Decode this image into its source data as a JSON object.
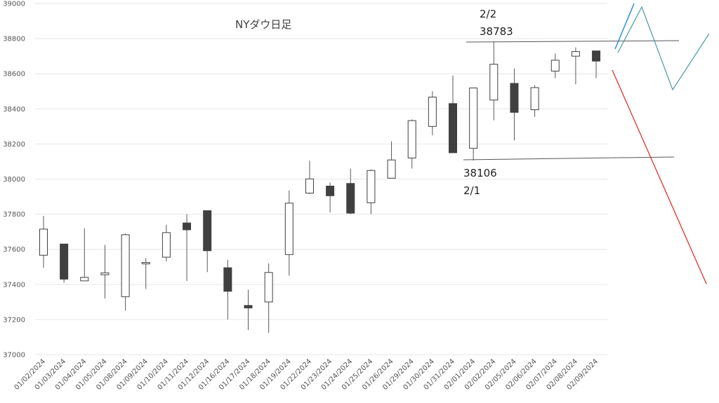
{
  "chart_data": {
    "type": "candlestick",
    "title": "NYダウ日足",
    "ylim": [
      37000,
      39000
    ],
    "y_ticks": [
      "37000",
      "37200",
      "37400",
      "37600",
      "37800",
      "38000",
      "38200",
      "38400",
      "38600",
      "38800",
      "39000"
    ],
    "grid": "horizontal",
    "colors": {
      "up_fill": "#ffffff",
      "down_fill": "#404040",
      "outline": "#404040",
      "wick": "#595959",
      "grid": "#e6e6e6",
      "lines_blue": "#2e8fd8",
      "lines_teal": "#4a9aa8",
      "line_red": "#e02020"
    },
    "candles": [
      {
        "date": "01/02/2024",
        "open": 37566,
        "high": 37790,
        "low": 37495,
        "close": 37715
      },
      {
        "date": "01/03/2024",
        "open": 37630,
        "high": 37630,
        "low": 37410,
        "close": 37430
      },
      {
        "date": "01/04/2024",
        "open": 37420,
        "high": 37720,
        "low": 37420,
        "close": 37440
      },
      {
        "date": "01/05/2024",
        "open": 37455,
        "high": 37625,
        "low": 37320,
        "close": 37466
      },
      {
        "date": "01/08/2024",
        "open": 37330,
        "high": 37690,
        "low": 37250,
        "close": 37683
      },
      {
        "date": "01/09/2024",
        "open": 37525,
        "high": 37550,
        "low": 37375,
        "close": 37525
      },
      {
        "date": "01/10/2024",
        "open": 37555,
        "high": 37740,
        "low": 37530,
        "close": 37695
      },
      {
        "date": "01/11/2024",
        "open": 37750,
        "high": 37800,
        "low": 37420,
        "close": 37711
      },
      {
        "date": "01/12/2024",
        "open": 37820,
        "high": 37820,
        "low": 37470,
        "close": 37592
      },
      {
        "date": "01/16/2024",
        "open": 37495,
        "high": 37540,
        "low": 37200,
        "close": 37361
      },
      {
        "date": "01/17/2024",
        "open": 37280,
        "high": 37370,
        "low": 37140,
        "close": 37266
      },
      {
        "date": "01/18/2024",
        "open": 37300,
        "high": 37520,
        "low": 37125,
        "close": 37468
      },
      {
        "date": "01/19/2024",
        "open": 37570,
        "high": 37935,
        "low": 37450,
        "close": 37863
      },
      {
        "date": "01/22/2024",
        "open": 37920,
        "high": 38105,
        "low": 37915,
        "close": 38001
      },
      {
        "date": "01/23/2024",
        "open": 37960,
        "high": 37980,
        "low": 37810,
        "close": 37905
      },
      {
        "date": "01/24/2024",
        "open": 37975,
        "high": 38060,
        "low": 37800,
        "close": 37806
      },
      {
        "date": "01/25/2024",
        "open": 37865,
        "high": 38055,
        "low": 37800,
        "close": 38049
      },
      {
        "date": "01/26/2024",
        "open": 38005,
        "high": 38215,
        "low": 38005,
        "close": 38109
      },
      {
        "date": "01/29/2024",
        "open": 38120,
        "high": 38340,
        "low": 38060,
        "close": 38333
      },
      {
        "date": "01/30/2024",
        "open": 38300,
        "high": 38500,
        "low": 38250,
        "close": 38467
      },
      {
        "date": "01/31/2024",
        "open": 38430,
        "high": 38590,
        "low": 38150,
        "close": 38150
      },
      {
        "date": "02/01/2024",
        "open": 38175,
        "high": 38520,
        "low": 38106,
        "close": 38519
      },
      {
        "date": "02/02/2024",
        "open": 38450,
        "high": 38783,
        "low": 38335,
        "close": 38654
      },
      {
        "date": "02/05/2024",
        "open": 38545,
        "high": 38630,
        "low": 38220,
        "close": 38380
      },
      {
        "date": "02/06/2024",
        "open": 38395,
        "high": 38535,
        "low": 38355,
        "close": 38521
      },
      {
        "date": "02/07/2024",
        "open": 38615,
        "high": 38715,
        "low": 38575,
        "close": 38677
      },
      {
        "date": "02/08/2024",
        "open": 38700,
        "high": 38750,
        "low": 38540,
        "close": 38726
      },
      {
        "date": "02/09/2024",
        "open": 38730,
        "high": 38730,
        "low": 38575,
        "close": 38672
      }
    ],
    "annotations": [
      {
        "date_label": "2/2",
        "value_label": "38783",
        "value": 38783
      },
      {
        "date_label": "2/1",
        "value_label": "38106",
        "value": 38106
      }
    ]
  }
}
